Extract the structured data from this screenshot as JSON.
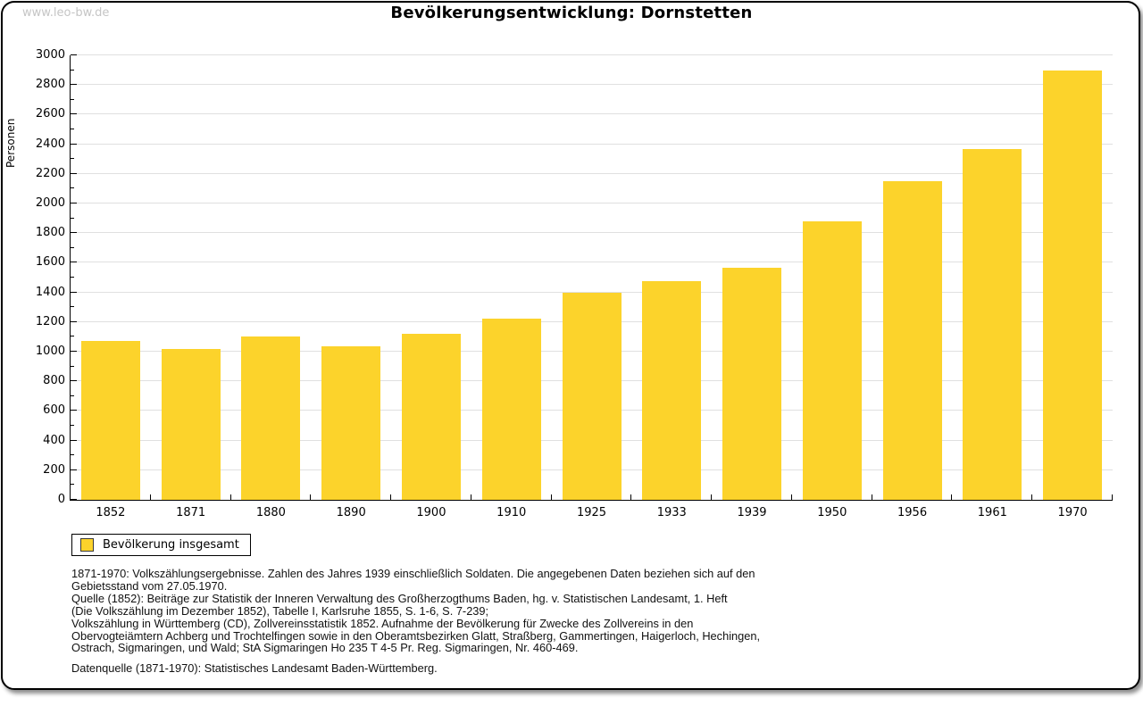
{
  "watermark": "www.leo-bw.de",
  "title": "Bevölkerungsentwicklung: Dornstetten",
  "chart_data": {
    "type": "bar",
    "title": "Bevölkerungsentwicklung: Dornstetten",
    "categories": [
      "1852",
      "1871",
      "1880",
      "1890",
      "1900",
      "1910",
      "1925",
      "1933",
      "1939",
      "1950",
      "1956",
      "1961",
      "1970"
    ],
    "values": [
      1070,
      1020,
      1100,
      1035,
      1120,
      1225,
      1400,
      1475,
      1565,
      1880,
      2150,
      2370,
      2900
    ],
    "xlabel": "",
    "ylabel": "Personen",
    "ylim": [
      0,
      3000
    ],
    "ytick_major": 200,
    "ytick_minor": 100,
    "grid": true,
    "legend_position": "bottom-left",
    "bar_color": "#FCD32B",
    "grid_color": "#e0e0e0",
    "legend": {
      "label": "Bevölkerung insgesamt"
    }
  },
  "footnotes": [
    "1871-1970: Volkszählungsergebnisse. Zahlen des Jahres 1939 einschließlich Soldaten. Die angegebenen Daten beziehen sich auf den",
    "Gebietsstand vom 27.05.1970.",
    "Quelle (1852): Beiträge zur Statistik der Inneren Verwaltung des Großherzogthums Baden, hg. v. Statistischen Landesamt, 1. Heft",
    "(Die Volkszählung im Dezember 1852), Tabelle I, Karlsruhe 1855, S. 1-6, S. 7-239;",
    "Volkszählung in Württemberg (CD), Zollvereinsstatistik 1852. Aufnahme der Bevölkerung für Zwecke des Zollvereins in den",
    "Obervogteiämtern Achberg und Trochtelfingen sowie in den Oberamtsbezirken Glatt, Straßberg, Gammertingen, Haigerloch, Hechingen,",
    "Ostrach, Sigmaringen, und Wald; StA Sigmaringen Ho 235 T 4-5 Pr. Reg. Sigmaringen, Nr. 460-469."
  ],
  "datasource": "Datenquelle (1871-1970): Statistisches Landesamt Baden-Württemberg."
}
